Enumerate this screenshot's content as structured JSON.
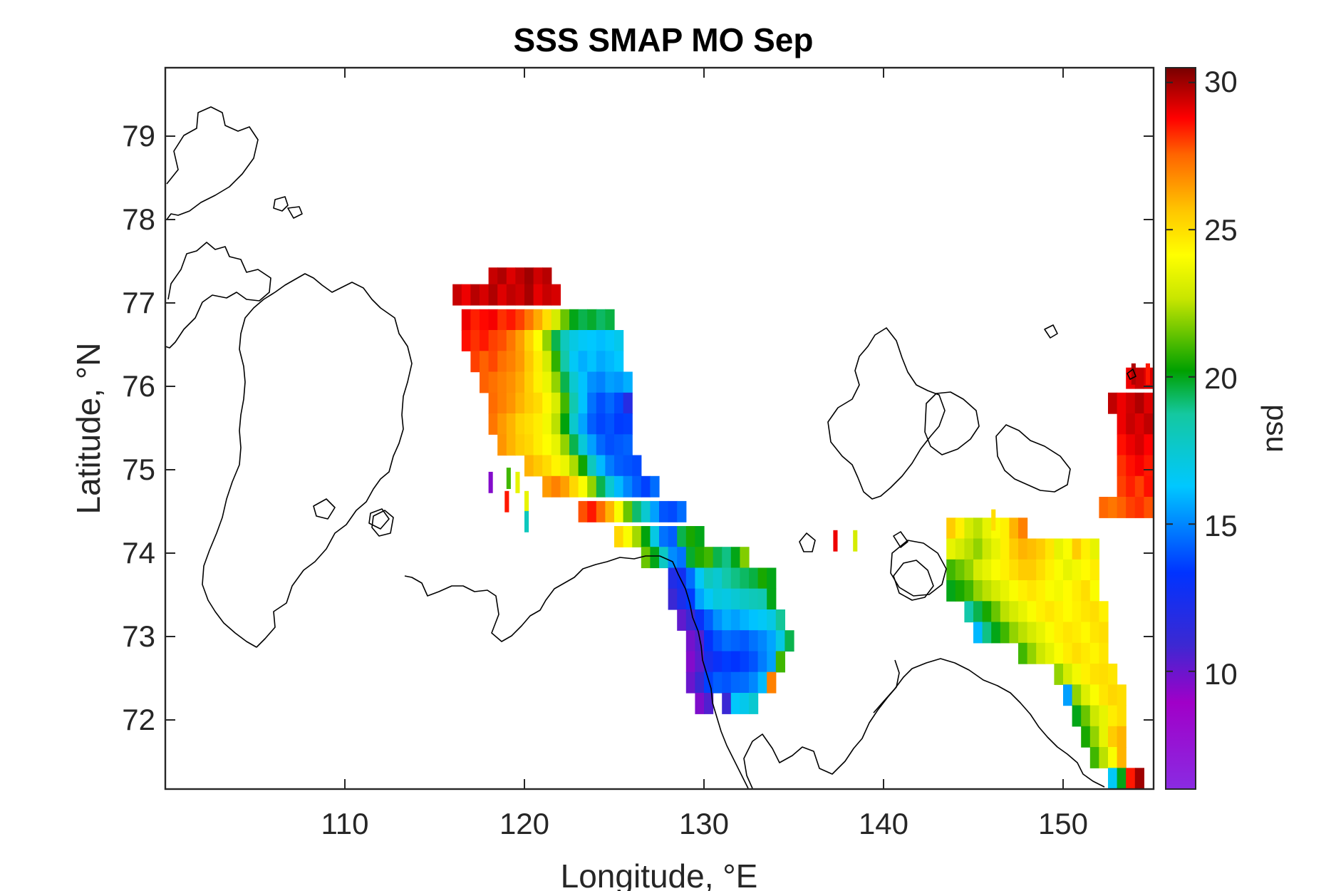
{
  "figure": {
    "title": "SSS SMAP MO Sep",
    "xlabel": "Longitude, °E",
    "ylabel": "Latitude, °N",
    "colorbar_label": "psu"
  },
  "chart_data": {
    "type": "heatmap",
    "title": "SSS SMAP MO Sep",
    "xlabel": "Longitude, °E",
    "ylabel": "Latitude, °N",
    "xlim": [
      100,
      155
    ],
    "ylim": [
      71.2,
      79.9
    ],
    "xticks": [
      "110",
      "120",
      "130",
      "140",
      "150"
    ],
    "yticks": [
      "72",
      "73",
      "74",
      "75",
      "76",
      "77",
      "78",
      "79"
    ],
    "colorbar": {
      "label": "psu",
      "range": [
        6,
        30.5
      ],
      "ticks": [
        "10",
        "15",
        "20",
        "25",
        "30"
      ],
      "colormap": "jet"
    },
    "salinity_rows_psu": [
      {
        "lat": 77.3,
        "lon_start": 118.0,
        "values": [
          29.5,
          29.8,
          29.2,
          29.6,
          30.0,
          29.4,
          29.7
        ]
      },
      {
        "lat": 77.1,
        "lon_start": 116.0,
        "values": [
          29.5,
          29.0,
          29.7,
          29.3,
          29.8,
          29.2,
          29.6,
          29.4,
          29.9,
          29.1,
          29.5,
          29.3
        ]
      },
      {
        "lat": 76.8,
        "lon_start": 116.5,
        "values": [
          29.0,
          28.4,
          28.7,
          28.9,
          28.2,
          28.5,
          28.0,
          27.2,
          26.2,
          25.0,
          23.0,
          21.5,
          20.0,
          19.5,
          19.8,
          19.3,
          19.6
        ]
      },
      {
        "lat": 76.55,
        "lon_start": 116.5,
        "values": [
          28.6,
          28.2,
          28.5,
          28.0,
          27.8,
          27.2,
          26.4,
          25.3,
          24.1,
          22.0,
          19.5,
          18.0,
          17.0,
          16.5,
          16.3,
          16.1,
          16.4,
          16.8
        ]
      },
      {
        "lat": 76.3,
        "lon_start": 117.0,
        "values": [
          28.0,
          27.6,
          27.9,
          27.3,
          27.0,
          26.5,
          25.6,
          24.6,
          23.0,
          20.8,
          18.5,
          16.5,
          15.8,
          16.2,
          15.7,
          16.0,
          16.3
        ]
      },
      {
        "lat": 76.05,
        "lon_start": 117.5,
        "values": [
          27.6,
          27.3,
          27.0,
          26.7,
          26.2,
          25.4,
          24.5,
          23.6,
          22.0,
          19.5,
          17.5,
          16.2,
          15.2,
          14.9,
          15.5,
          15.3,
          15.8
        ]
      },
      {
        "lat": 75.8,
        "lon_start": 118.0,
        "values": [
          27.4,
          27.0,
          26.6,
          26.0,
          25.5,
          25.1,
          24.3,
          23.1,
          21.0,
          18.3,
          16.2,
          14.6,
          13.9,
          14.4,
          13.8,
          11.8
        ]
      },
      {
        "lat": 75.55,
        "lon_start": 118.0,
        "values": [
          27.2,
          26.5,
          26.0,
          25.3,
          25.0,
          24.6,
          23.8,
          22.5,
          20.1,
          17.6,
          15.6,
          14.2,
          13.7,
          14.0,
          13.5,
          13.6
        ]
      },
      {
        "lat": 75.3,
        "lon_start": 118.5,
        "values": [
          26.6,
          26.0,
          25.5,
          25.2,
          24.6,
          24.1,
          23.5,
          22.0,
          19.5,
          17.3,
          15.5,
          14.4,
          13.9,
          14.1,
          14.3
        ]
      },
      {
        "lat": 75.05,
        "lon_start": 120.0,
        "values": [
          26.0,
          25.6,
          25.1,
          24.4,
          23.6,
          22.3,
          20.4,
          18.0,
          16.0,
          14.8,
          14.2,
          14.0,
          13.8
        ]
      },
      {
        "lat": 74.8,
        "lon_start": 121.0,
        "values": [
          26.5,
          27.0,
          26.4,
          25.2,
          24.0,
          22.0,
          19.5,
          17.5,
          16.0,
          15.0,
          14.2,
          13.6,
          14.5
        ]
      },
      {
        "lat": 74.5,
        "lon_start": 123.0,
        "values": [
          27.8,
          28.5,
          27.4,
          26.0,
          24.0,
          21.5,
          19.2,
          17.5,
          15.5,
          14.0,
          13.8,
          14.5
        ]
      },
      {
        "lat": 74.2,
        "lon_start": 125.0,
        "values": [
          25.2,
          24.0,
          22.2,
          20.1,
          17.0,
          14.6,
          14.2,
          19.5,
          20.5,
          20.0
        ]
      },
      {
        "lat": 73.95,
        "lon_start": 126.5,
        "values": [
          21.5,
          20.0,
          17.8,
          15.1,
          14.6,
          19.8,
          20.6,
          21.0,
          19.5,
          19.0,
          20.0,
          21.8
        ]
      },
      {
        "lat": 73.7,
        "lon_start": 128.0,
        "values": [
          12.0,
          12.6,
          14.5,
          16.5,
          18.0,
          17.5,
          18.5,
          19.0,
          19.3,
          19.6,
          20.5,
          20.0
        ]
      },
      {
        "lat": 73.45,
        "lon_start": 128.0,
        "values": [
          11.0,
          12.2,
          13.5,
          15.6,
          16.5,
          17.2,
          17.0,
          17.4,
          17.8,
          18.1,
          18.3,
          20.0
        ]
      },
      {
        "lat": 73.2,
        "lon_start": 128.5,
        "values": [
          10.2,
          11.0,
          13.0,
          14.2,
          15.2,
          15.8,
          15.5,
          15.9,
          16.2,
          16.5,
          17.0,
          18.8
        ]
      },
      {
        "lat": 72.95,
        "lon_start": 129.0,
        "values": [
          9.8,
          10.5,
          13.2,
          14.0,
          14.5,
          14.3,
          14.1,
          14.6,
          15.0,
          15.6,
          17.0,
          19.5
        ]
      },
      {
        "lat": 72.7,
        "lon_start": 129.0,
        "values": [
          9.5,
          10.3,
          12.4,
          13.0,
          13.5,
          13.3,
          13.6,
          14.0,
          14.8,
          15.5,
          21.0
        ]
      },
      {
        "lat": 72.45,
        "lon_start": 129.0,
        "values": [
          10.0,
          11.0,
          13.6,
          14.2,
          14.0,
          14.4,
          14.5,
          15.0,
          16.0,
          27.0
        ]
      },
      {
        "lat": 72.2,
        "lon_start": 129.5,
        "values": [
          9.6,
          10.5,
          null,
          11.0,
          16.4,
          16.8,
          17.5
        ]
      },
      {
        "lat": 74.3,
        "lon_start": 143.5,
        "values": [
          25.5,
          24.5,
          23.0,
          22.5,
          23.5,
          24.0,
          24.5,
          26.0,
          27.0
        ]
      },
      {
        "lat": 74.05,
        "lon_start": 143.5,
        "values": [
          23.5,
          23.0,
          22.5,
          22.0,
          22.8,
          23.5,
          24.5,
          25.5,
          26.0,
          25.8,
          25.5,
          24.8,
          23.5,
          24.0,
          25.5,
          24.5,
          23.5
        ]
      },
      {
        "lat": 73.8,
        "lon_start": 143.5,
        "values": [
          21.0,
          21.5,
          22.0,
          23.0,
          23.5,
          24.0,
          24.5,
          25.0,
          25.5,
          25.5,
          25.0,
          24.5,
          24.0,
          23.5,
          23.8,
          24.2,
          24.6
        ]
      },
      {
        "lat": 73.55,
        "lon_start": 143.5,
        "values": [
          20.0,
          20.5,
          21.0,
          22.0,
          22.5,
          23.0,
          23.5,
          24.0,
          24.5,
          24.8,
          24.5,
          24.0,
          23.8,
          24.2,
          24.6,
          25.0,
          24.0
        ]
      },
      {
        "lat": 73.3,
        "lon_start": 144.5,
        "values": [
          18.5,
          19.5,
          20.5,
          21.5,
          22.5,
          23.0,
          23.5,
          24.0,
          24.5,
          24.8,
          24.5,
          24.2,
          24.5,
          24.8,
          25.0,
          24.5
        ]
      },
      {
        "lat": 73.05,
        "lon_start": 145.0,
        "values": [
          16.0,
          19.0,
          20.0,
          21.0,
          22.0,
          22.5,
          23.0,
          23.5,
          24.0,
          24.5,
          24.8,
          24.6,
          24.3,
          24.8,
          25.0
        ]
      },
      {
        "lat": 72.8,
        "lon_start": 147.5,
        "values": [
          21.0,
          22.0,
          22.8,
          23.4,
          24.0,
          24.6,
          25.0,
          24.7,
          24.4,
          24.8
        ]
      },
      {
        "lat": 72.55,
        "lon_start": 149.5,
        "values": [
          22.0,
          23.0,
          23.8,
          24.5,
          24.9,
          25.0,
          24.8
        ]
      },
      {
        "lat": 72.3,
        "lon_start": 150.0,
        "values": [
          15.5,
          22.0,
          23.2,
          24.0,
          24.8,
          25.2,
          25.0
        ]
      },
      {
        "lat": 72.05,
        "lon_start": 150.5,
        "values": [
          20.0,
          21.5,
          22.8,
          23.5,
          24.6,
          25.0
        ]
      },
      {
        "lat": 71.8,
        "lon_start": 151.0,
        "values": [
          20.5,
          22.0,
          23.5,
          25.5,
          26.0
        ]
      },
      {
        "lat": 71.55,
        "lon_start": 151.5,
        "values": [
          21.0,
          22.5,
          24.0,
          26.0
        ]
      },
      {
        "lat": 71.3,
        "lon_start": 152.5,
        "values": [
          16.5,
          20.0,
          28.5,
          30.0
        ]
      },
      {
        "lat": 76.1,
        "lon_start": 153.5,
        "values": [
          29.0,
          29.5,
          29.2
        ]
      },
      {
        "lat": 75.8,
        "lon_start": 152.5,
        "values": [
          29.6,
          29.0,
          29.4,
          29.8,
          29.2
        ]
      },
      {
        "lat": 75.55,
        "lon_start": 153.0,
        "values": [
          29.0,
          29.5,
          29.2,
          29.6
        ]
      },
      {
        "lat": 75.3,
        "lon_start": 153.0,
        "values": [
          28.6,
          29.0,
          29.3,
          28.8
        ]
      },
      {
        "lat": 75.05,
        "lon_start": 153.0,
        "values": [
          28.2,
          28.6,
          28.9,
          28.5
        ]
      },
      {
        "lat": 74.8,
        "lon_start": 153.0,
        "values": [
          28.0,
          28.4,
          28.0,
          28.6
        ]
      },
      {
        "lat": 74.55,
        "lon_start": 152.0,
        "values": [
          27.5,
          27.2,
          27.6,
          28.0,
          28.2,
          27.8
        ]
      }
    ],
    "sparse_cells_psu": [
      {
        "lon": 118.0,
        "lat": 74.85,
        "value": 9.5
      },
      {
        "lon": 119.0,
        "lat": 74.9,
        "value": 21.0
      },
      {
        "lon": 119.5,
        "lat": 74.85,
        "value": 23.5
      },
      {
        "lon": 118.9,
        "lat": 74.62,
        "value": 28.5
      },
      {
        "lon": 120.0,
        "lat": 74.62,
        "value": 23.5
      },
      {
        "lon": 120.0,
        "lat": 74.38,
        "value": 18.0
      },
      {
        "lon": 137.2,
        "lat": 74.15,
        "value": 29.0
      },
      {
        "lon": 138.3,
        "lat": 74.15,
        "value": 23.0
      },
      {
        "lon": 146.0,
        "lat": 74.4,
        "value": 25.0
      },
      {
        "lon": 153.8,
        "lat": 76.15,
        "value": 29.8
      },
      {
        "lon": 154.6,
        "lat": 76.15,
        "value": 28.5
      }
    ],
    "coastline_color": "#000000"
  }
}
